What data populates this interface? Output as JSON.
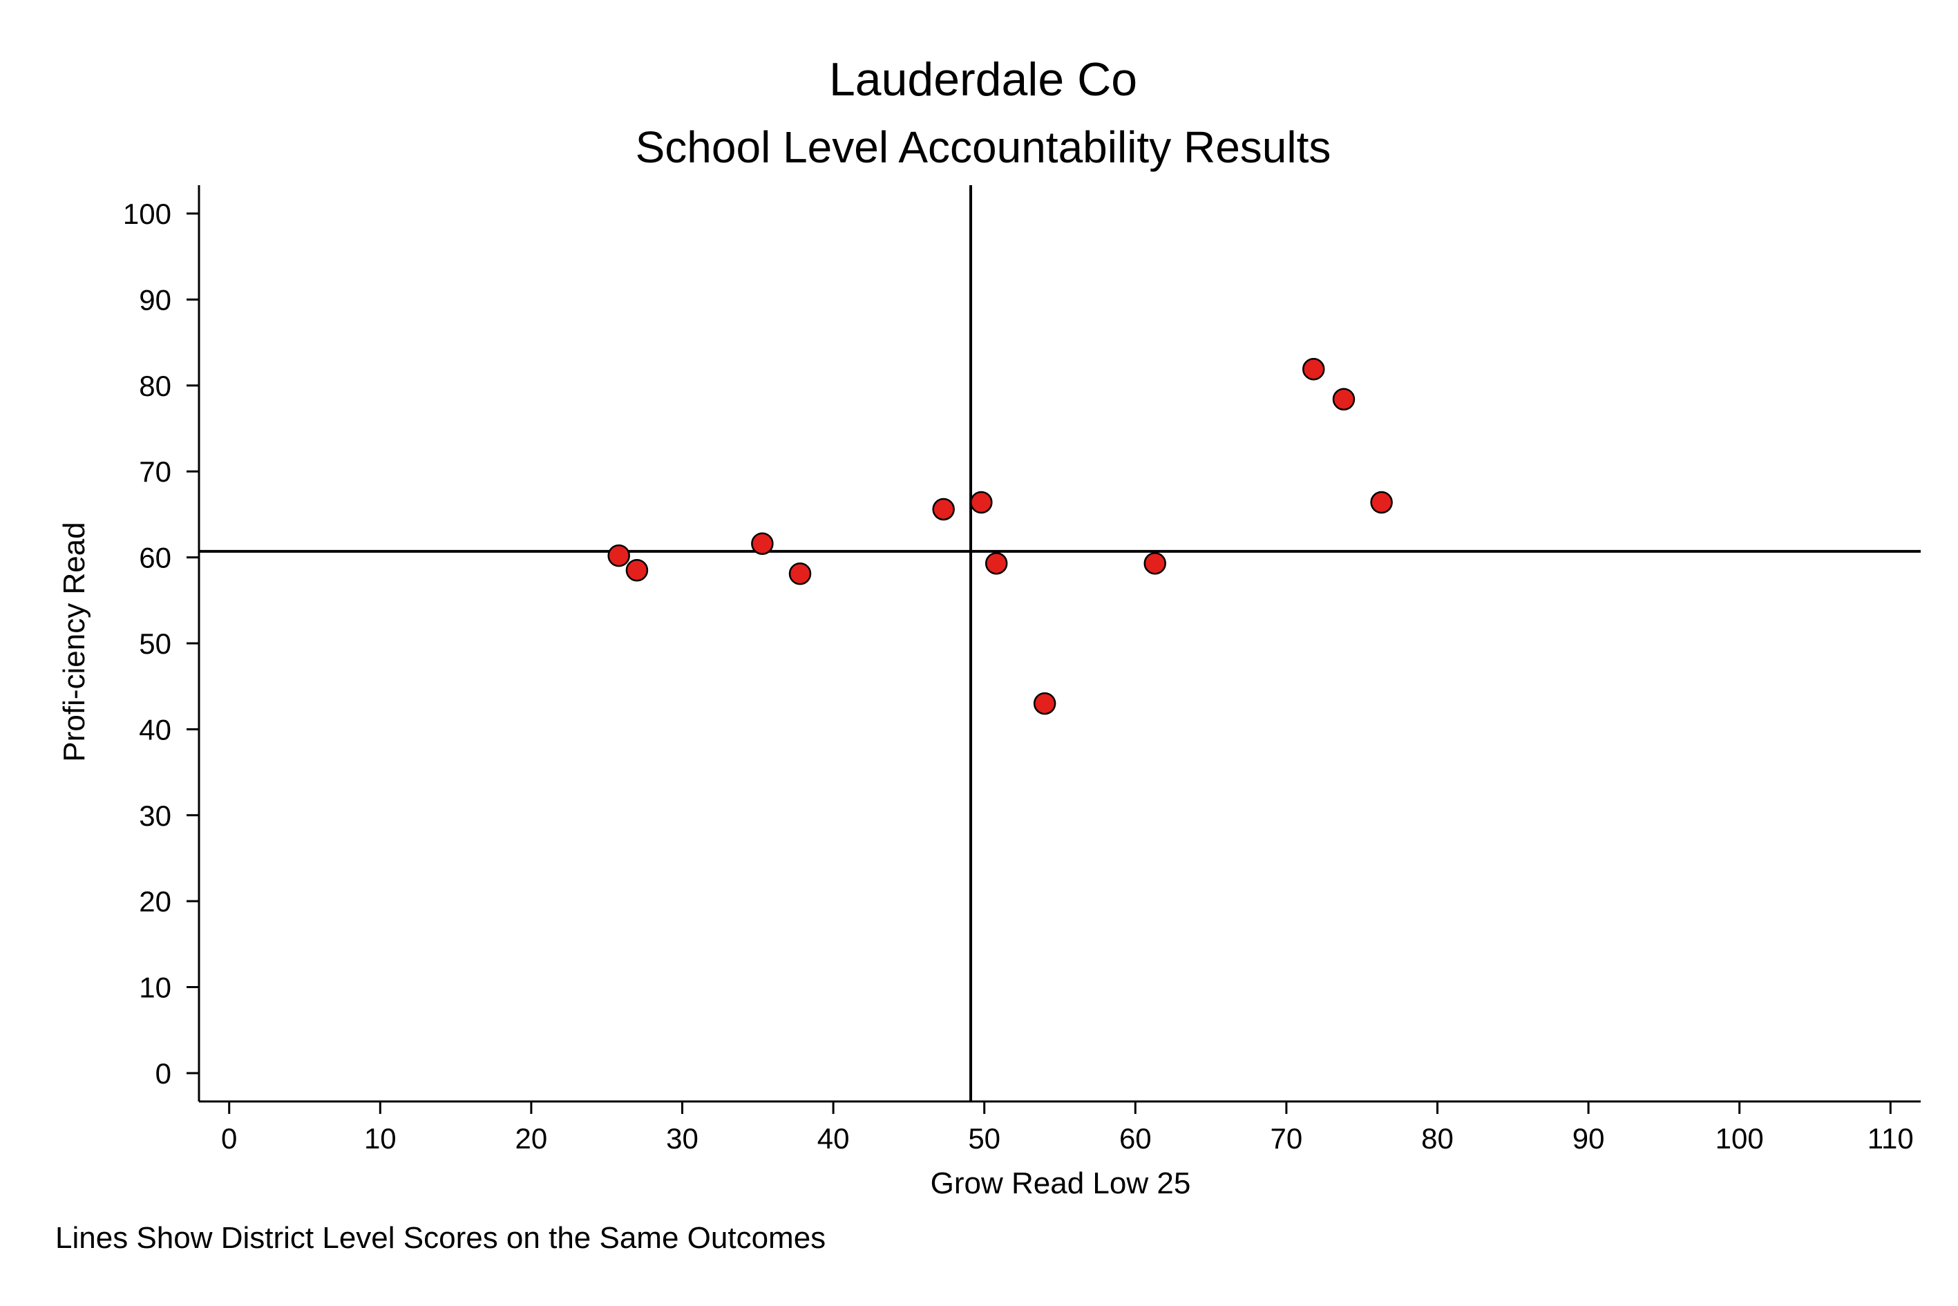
{
  "chart_data": {
    "type": "scatter",
    "title": "Lauderdale Co",
    "subtitle": "School Level Accountability Results",
    "xlabel": "Grow Read Low 25",
    "ylabel": "Profi-ciency Read",
    "note": "Lines Show District Level Scores on the Same Outcomes",
    "xlim": [
      -2,
      112
    ],
    "ylim": [
      -3.3,
      103.3
    ],
    "xticks": [
      0,
      10,
      20,
      30,
      40,
      50,
      60,
      70,
      80,
      90,
      100,
      110
    ],
    "yticks": [
      0,
      10,
      20,
      30,
      40,
      50,
      60,
      70,
      80,
      90,
      100
    ],
    "grid": false,
    "reference_lines": {
      "x": 49.1,
      "y": 60.7
    },
    "marker_color": "#e3201b",
    "points": [
      {
        "x": 25.8,
        "y": 60.2
      },
      {
        "x": 27.0,
        "y": 58.5
      },
      {
        "x": 35.3,
        "y": 61.6
      },
      {
        "x": 37.8,
        "y": 58.1
      },
      {
        "x": 47.3,
        "y": 65.6
      },
      {
        "x": 49.8,
        "y": 66.4
      },
      {
        "x": 50.8,
        "y": 59.3
      },
      {
        "x": 54.0,
        "y": 43.0
      },
      {
        "x": 61.3,
        "y": 59.3
      },
      {
        "x": 71.8,
        "y": 81.9
      },
      {
        "x": 73.8,
        "y": 78.4
      },
      {
        "x": 76.3,
        "y": 66.4
      }
    ]
  }
}
